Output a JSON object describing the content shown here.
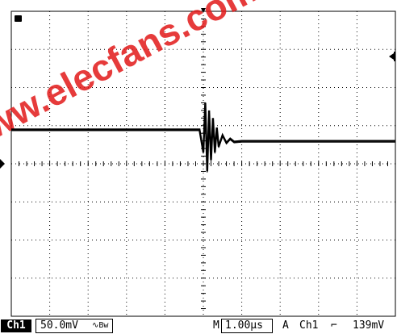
{
  "scope": {
    "channel_label": "Ch1",
    "volts_per_div": "50.0mV",
    "coupling_icon": "ac-coupling-bw-icon",
    "timebase_prefix": "M",
    "timebase": "1.00µs",
    "trigger_mode": "A",
    "trigger_source": "Ch1",
    "trigger_slope_icon": "falling-edge-icon",
    "trigger_level": "139mV",
    "ground_marker_label": "1",
    "trace_color": "#000000",
    "grid_color": "#000000",
    "watermark": "www.elecfans.com",
    "watermark_color": "#e21a1a"
  },
  "chart_data": {
    "type": "line",
    "divisions": {
      "x": 10,
      "y": 8
    },
    "series": [
      {
        "values_note": "",
        "points": [
          [
            0.0,
            0.9
          ],
          [
            1.0,
            0.9
          ],
          [
            2.0,
            0.9
          ],
          [
            3.0,
            0.9
          ],
          [
            4.0,
            0.9
          ],
          [
            4.9,
            0.9
          ],
          [
            4.95,
            0.6
          ],
          [
            5.0,
            0.3
          ],
          [
            5.05,
            1.6
          ],
          [
            5.1,
            -0.2
          ],
          [
            5.15,
            1.4
          ],
          [
            5.2,
            0.1
          ],
          [
            5.25,
            1.2
          ],
          [
            5.3,
            0.3
          ],
          [
            5.35,
            0.95
          ],
          [
            5.4,
            0.45
          ],
          [
            5.5,
            0.75
          ],
          [
            5.6,
            0.55
          ],
          [
            5.7,
            0.66
          ],
          [
            5.8,
            0.58
          ],
          [
            6.0,
            0.6
          ],
          [
            7.0,
            0.6
          ],
          [
            8.0,
            0.6
          ],
          [
            9.0,
            0.6
          ],
          [
            10.0,
            0.6
          ]
        ]
      }
    ]
  }
}
